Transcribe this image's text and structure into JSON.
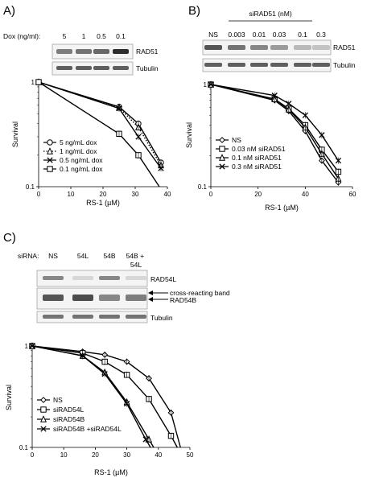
{
  "panels": [
    {
      "label": "A)",
      "blot": {
        "header_label": "Dox (ng/ml):",
        "lanes": [
          "5",
          "1",
          "0.5",
          "0.1"
        ],
        "rows": [
          {
            "name": "RAD51",
            "intensity": [
              0.55,
              0.6,
              0.65,
              0.95
            ]
          },
          {
            "name": "Tubulin",
            "intensity": [
              0.7,
              0.7,
              0.7,
              0.7
            ]
          }
        ]
      }
    },
    {
      "label": "B)",
      "blot": {
        "group_label": "siRAD51 (nM)",
        "lanes": [
          "NS",
          "0.003",
          "0.01",
          "0.03",
          "0.1",
          "0.3"
        ],
        "rows": [
          {
            "name": "RAD51",
            "intensity": [
              0.75,
              0.6,
              0.5,
              0.4,
              0.25,
              0.2
            ]
          },
          {
            "name": "Tubulin",
            "intensity": [
              0.7,
              0.7,
              0.7,
              0.7,
              0.7,
              0.7
            ]
          }
        ]
      }
    },
    {
      "label": "C)",
      "blot": {
        "header_label": "siRNA:",
        "lanes": [
          "NS",
          "54L",
          "54B",
          "54B +\n54L"
        ],
        "rows": [
          {
            "name": "RAD54L",
            "intensity": [
              0.5,
              0.1,
              0.5,
              0.1
            ]
          },
          {
            "name": "RAD54B",
            "intensity": [
              0.75,
              0.8,
              0.5,
              0.55
            ]
          },
          {
            "name": "Tubulin",
            "intensity": [
              0.6,
              0.6,
              0.6,
              0.6
            ]
          }
        ],
        "annotations": [
          "cross-reacting band",
          "RAD54B"
        ]
      }
    }
  ],
  "chart_data": [
    {
      "type": "line",
      "panel": "A)",
      "xlabel": "RS-1 (µM)",
      "ylabel": "Survival",
      "yscale": "log",
      "xlim": [
        0,
        40
      ],
      "ylim": [
        0.1,
        1
      ],
      "xticks": [
        "0",
        "10",
        "20",
        "30",
        "40"
      ],
      "yticks": [
        "0.1",
        "1"
      ],
      "legend_position": "bottom-left",
      "series": [
        {
          "name": "5 ng/mL dox",
          "marker": "circle",
          "dash": "solid",
          "x": [
            0,
            25,
            31,
            38
          ],
          "y": [
            1.0,
            0.58,
            0.4,
            0.17
          ]
        },
        {
          "name": "1 ng/mL dox",
          "marker": "triangle",
          "dash": "dotted",
          "x": [
            0,
            25,
            31,
            38
          ],
          "y": [
            1.0,
            0.57,
            0.37,
            0.16
          ]
        },
        {
          "name": "0.5 ng/mL dox",
          "marker": "x",
          "dash": "solid",
          "x": [
            0,
            25,
            31,
            38
          ],
          "y": [
            1.0,
            0.56,
            0.3,
            0.15
          ]
        },
        {
          "name": "0.1 ng/mL dox",
          "marker": "square",
          "dash": "solid",
          "x": [
            0,
            25,
            31,
            37.5
          ],
          "y": [
            1.0,
            0.32,
            0.2,
            0.1
          ]
        }
      ]
    },
    {
      "type": "line",
      "panel": "B)",
      "xlabel": "RS-1 (µM)",
      "ylabel": "Survival",
      "yscale": "log",
      "xlim": [
        0,
        60
      ],
      "ylim": [
        0.1,
        1
      ],
      "xticks": [
        "0",
        "20",
        "40",
        "60"
      ],
      "yticks": [
        "0.1",
        "1"
      ],
      "legend_position": "bottom-left",
      "series": [
        {
          "name": "NS",
          "marker": "diamond",
          "dash": "solid",
          "x": [
            0,
            27,
            33,
            40,
            47,
            54
          ],
          "y": [
            1.0,
            0.7,
            0.55,
            0.35,
            0.18,
            0.11
          ]
        },
        {
          "name": "0.03 nM siRAD51",
          "marker": "square",
          "dash": "solid",
          "x": [
            0,
            27,
            33,
            40,
            47,
            54
          ],
          "y": [
            1.0,
            0.72,
            0.58,
            0.4,
            0.23,
            0.14
          ]
        },
        {
          "name": "0.1 nM siRAD51",
          "marker": "triangle",
          "dash": "solid",
          "x": [
            0,
            27,
            33,
            40,
            47,
            54
          ],
          "y": [
            1.0,
            0.72,
            0.57,
            0.38,
            0.21,
            0.12
          ]
        },
        {
          "name": "0.3 nM siRAD51",
          "marker": "x",
          "dash": "solid",
          "x": [
            0,
            27,
            33,
            40,
            47,
            54
          ],
          "y": [
            1.0,
            0.78,
            0.65,
            0.5,
            0.32,
            0.18
          ]
        }
      ]
    },
    {
      "type": "line",
      "panel": "C)",
      "xlabel": "RS-1 (µM)",
      "ylabel": "Survival",
      "yscale": "log",
      "xlim": [
        0,
        50
      ],
      "ylim": [
        0.1,
        1
      ],
      "xticks": [
        "0",
        "10",
        "20",
        "30",
        "40",
        "50"
      ],
      "yticks": [
        "0.1",
        "1"
      ],
      "legend_position": "bottom-left",
      "series": [
        {
          "name": "NS",
          "marker": "diamond",
          "dash": "solid",
          "x": [
            0,
            16,
            23,
            30,
            37,
            44,
            47
          ],
          "y": [
            1.0,
            0.88,
            0.82,
            0.7,
            0.48,
            0.22,
            0.1
          ]
        },
        {
          "name": "siRAD54L",
          "marker": "square",
          "dash": "solid",
          "x": [
            0,
            16,
            23,
            30,
            37,
            44,
            46
          ],
          "y": [
            1.0,
            0.85,
            0.7,
            0.52,
            0.3,
            0.13,
            0.1
          ]
        },
        {
          "name": "siRAD54B",
          "marker": "triangle",
          "dash": "solid",
          "x": [
            0,
            16,
            23,
            30,
            37,
            38.5
          ],
          "y": [
            1.0,
            0.8,
            0.55,
            0.28,
            0.12,
            0.1
          ]
        },
        {
          "name": "siRAD54B +siRAD54L",
          "marker": "x",
          "dash": "solid",
          "x": [
            0,
            16,
            23,
            30,
            36,
            37.5
          ],
          "y": [
            1.0,
            0.8,
            0.53,
            0.27,
            0.12,
            0.1
          ]
        }
      ]
    }
  ]
}
